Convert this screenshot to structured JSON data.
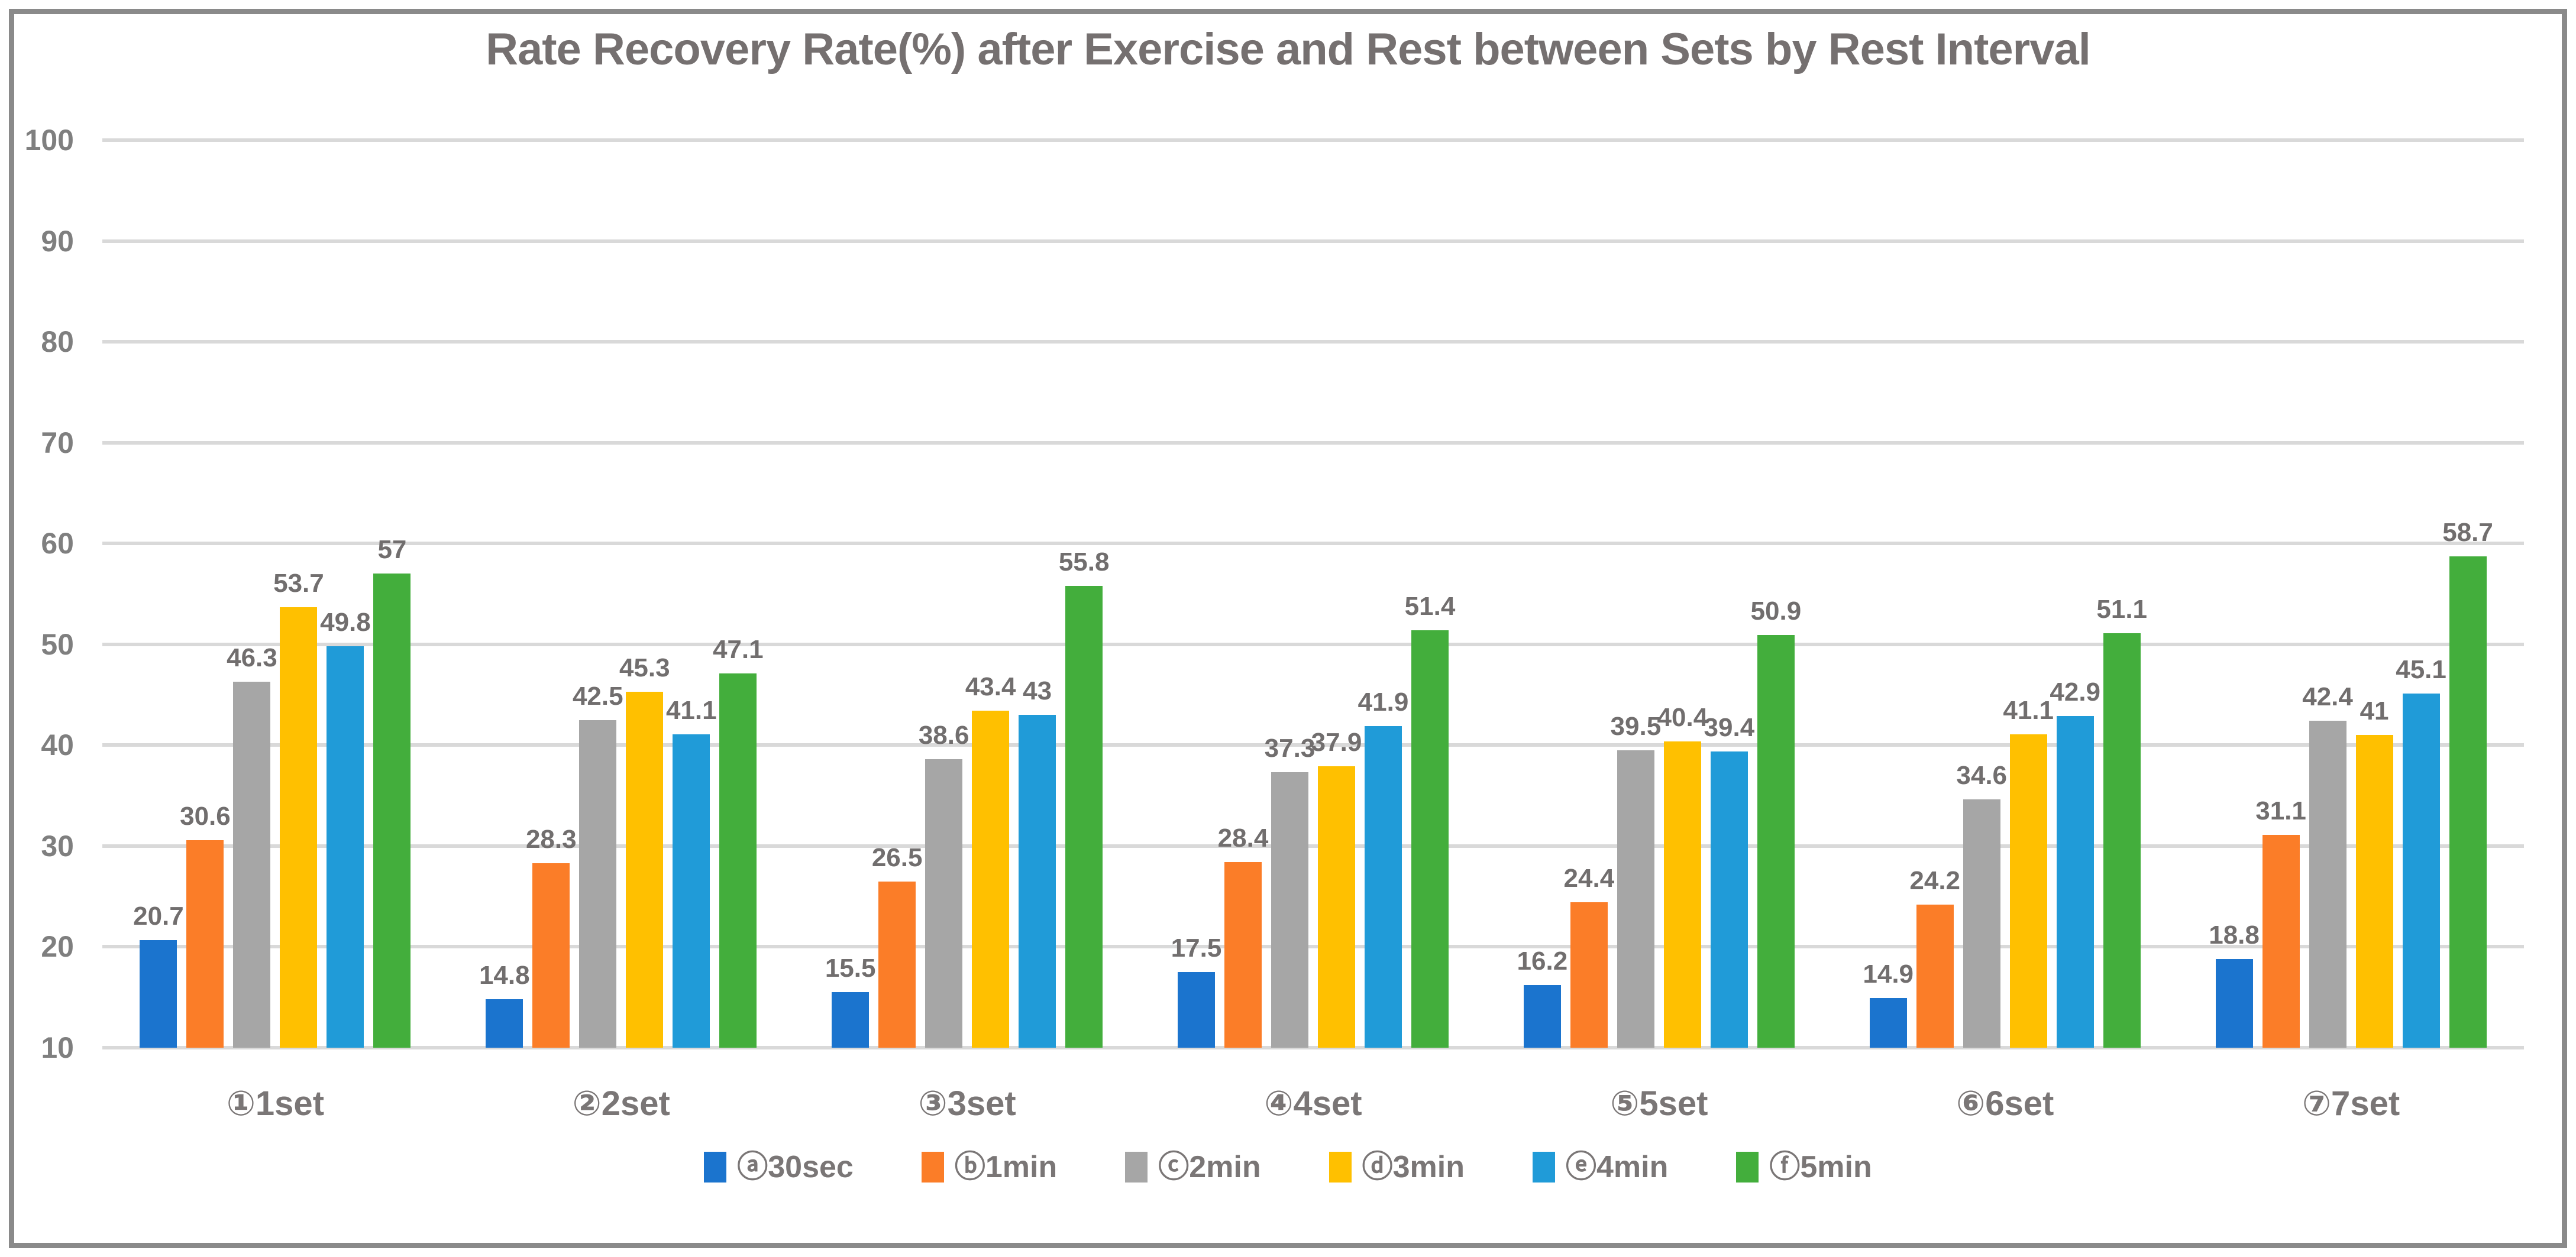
{
  "title": "Rate Recovery Rate(%) after Exercise and Rest between Sets by Rest Interval",
  "colors": {
    "text": "#757070",
    "tick_text": "#7F7F7F",
    "gridline": "#D9D9D9",
    "border": "#8A8A8A",
    "background": "#FFFFFF"
  },
  "chart_data": {
    "type": "bar",
    "title": "Rate Recovery Rate(%) after Exercise and Rest between Sets by Rest Interval",
    "xlabel": "",
    "ylabel": "",
    "ylim": [
      10,
      100
    ],
    "yticks": [
      10,
      20,
      30,
      40,
      50,
      60,
      70,
      80,
      90,
      100
    ],
    "grid": true,
    "legend_position": "bottom",
    "categories": [
      "①1set",
      "②2set",
      "③3set",
      "④4set",
      "⑤5set",
      "⑥6set",
      "⑦7set"
    ],
    "series": [
      {
        "name": "ⓐ30sec",
        "color": "#1B74CE",
        "values": [
          20.7,
          14.8,
          15.5,
          17.5,
          16.2,
          14.9,
          18.8
        ]
      },
      {
        "name": "ⓑ1min",
        "color": "#FB7D28",
        "values": [
          30.6,
          28.3,
          26.5,
          28.4,
          24.4,
          24.2,
          31.1
        ]
      },
      {
        "name": "ⓒ2min",
        "color": "#A6A6A6",
        "values": [
          46.3,
          42.5,
          38.6,
          37.3,
          39.5,
          34.6,
          42.4
        ]
      },
      {
        "name": "ⓓ3min",
        "color": "#FFC000",
        "values": [
          53.7,
          45.3,
          43.4,
          37.9,
          40.4,
          41.1,
          41
        ]
      },
      {
        "name": "ⓔ4min",
        "color": "#209BD8",
        "values": [
          49.8,
          41.1,
          43,
          41.9,
          39.4,
          42.9,
          45.1
        ]
      },
      {
        "name": "ⓕ5min",
        "color": "#43AE3C",
        "values": [
          57,
          47.1,
          55.8,
          51.4,
          50.9,
          51.1,
          58.7
        ]
      }
    ]
  }
}
